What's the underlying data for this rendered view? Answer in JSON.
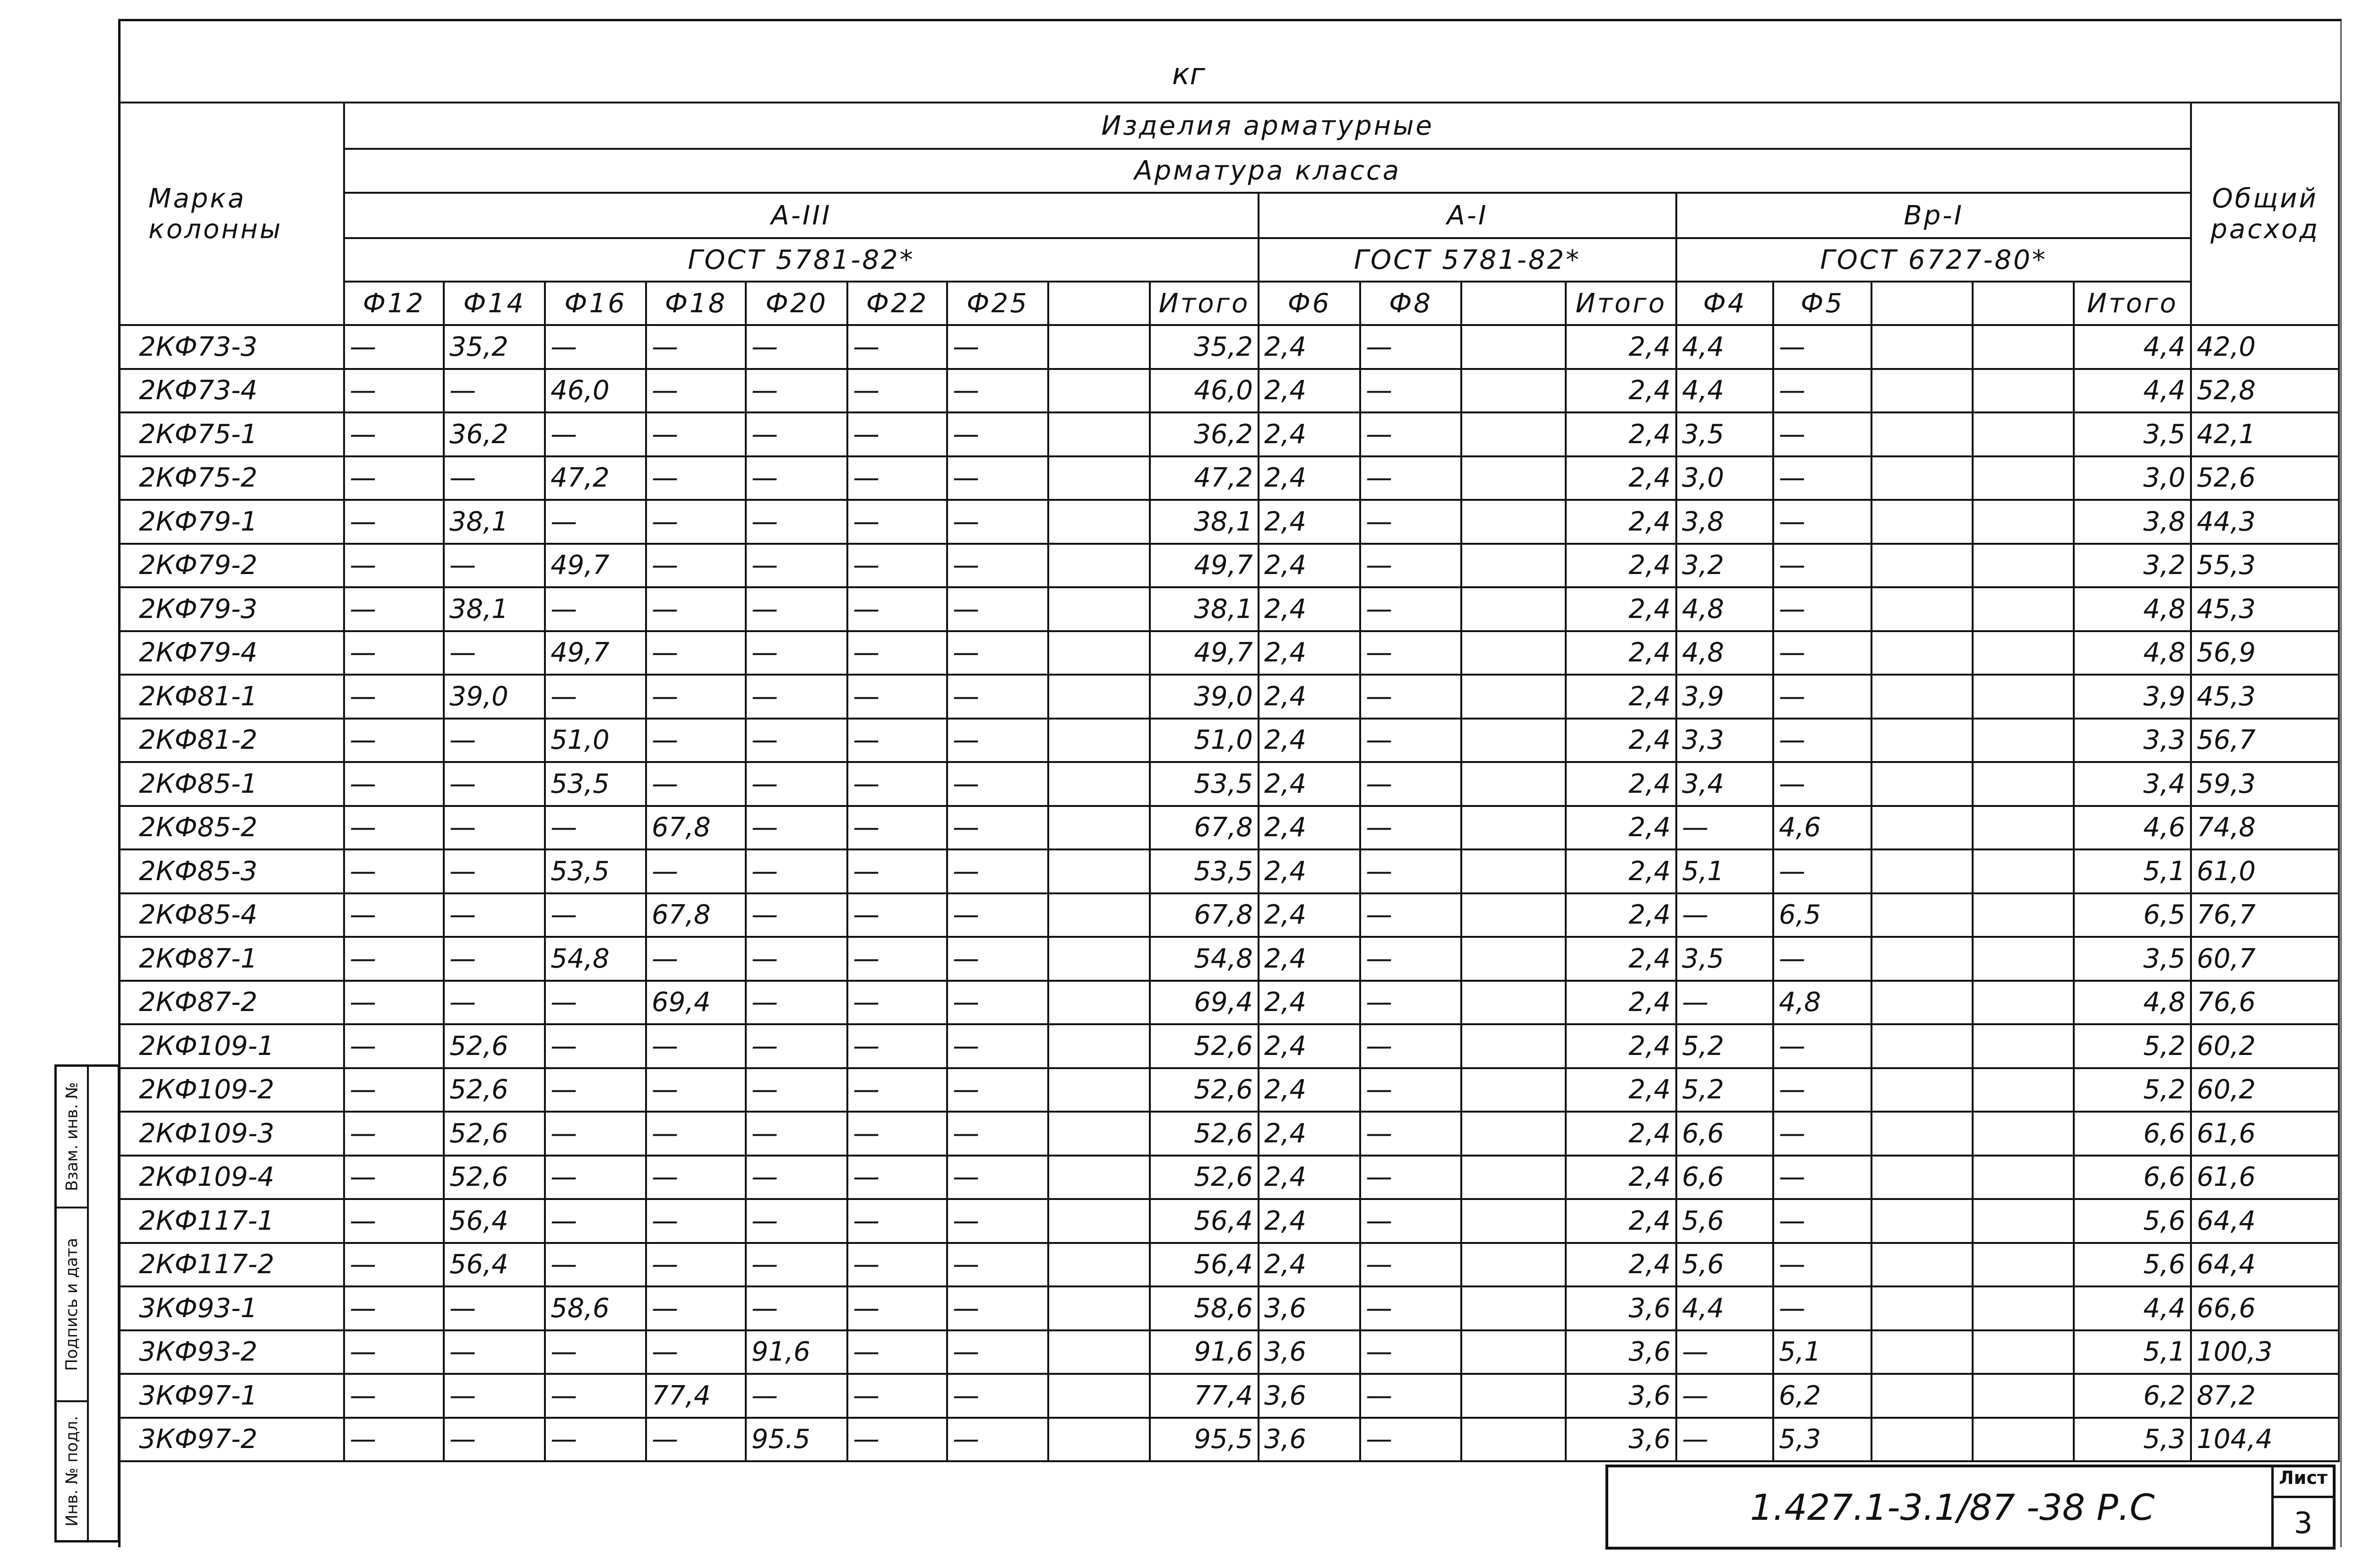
{
  "unit": "кг",
  "header": {
    "mark": "Марка колонны",
    "products": "Изделия арматурные",
    "rebar_class": "Арматура класса",
    "total_consumption": "Общий расход",
    "groups": [
      {
        "class": "А-III",
        "gost": "ГОСТ 5781-82*",
        "diameters": [
          "Ф12",
          "Ф14",
          "Ф16",
          "Ф18",
          "Ф20",
          "Ф22",
          "Ф25",
          ""
        ],
        "total": "Итого"
      },
      {
        "class": "А-I",
        "gost": "ГОСТ 5781-82*",
        "diameters": [
          "Ф6",
          "Ф8",
          ""
        ],
        "total": "Итого"
      },
      {
        "class": "Вр-I",
        "gost": "ГОСТ 6727-80*",
        "diameters": [
          "Ф4",
          "Ф5",
          "",
          ""
        ],
        "total": "Итого"
      }
    ]
  },
  "rows": [
    {
      "mark": "2КФ73-3",
      "a3": [
        "—",
        "35,2",
        "—",
        "—",
        "—",
        "—",
        "—",
        ""
      ],
      "a3_total": "35,2",
      "a1": [
        "2,4",
        "—",
        ""
      ],
      "a1_total": "2,4",
      "bp": [
        "4,4",
        "—",
        "",
        ""
      ],
      "bp_total": "4,4",
      "total": "42,0"
    },
    {
      "mark": "2КФ73-4",
      "a3": [
        "—",
        "—",
        "46,0",
        "—",
        "—",
        "—",
        "—",
        ""
      ],
      "a3_total": "46,0",
      "a1": [
        "2,4",
        "—",
        ""
      ],
      "a1_total": "2,4",
      "bp": [
        "4,4",
        "—",
        "",
        ""
      ],
      "bp_total": "4,4",
      "total": "52,8"
    },
    {
      "mark": "2КФ75-1",
      "a3": [
        "—",
        "36,2",
        "—",
        "—",
        "—",
        "—",
        "—",
        ""
      ],
      "a3_total": "36,2",
      "a1": [
        "2,4",
        "—",
        ""
      ],
      "a1_total": "2,4",
      "bp": [
        "3,5",
        "—",
        "",
        ""
      ],
      "bp_total": "3,5",
      "total": "42,1"
    },
    {
      "mark": "2КФ75-2",
      "a3": [
        "—",
        "—",
        "47,2",
        "—",
        "—",
        "—",
        "—",
        ""
      ],
      "a3_total": "47,2",
      "a1": [
        "2,4",
        "—",
        ""
      ],
      "a1_total": "2,4",
      "bp": [
        "3,0",
        "—",
        "",
        ""
      ],
      "bp_total": "3,0",
      "total": "52,6"
    },
    {
      "mark": "2КФ79-1",
      "a3": [
        "—",
        "38,1",
        "—",
        "—",
        "—",
        "—",
        "—",
        ""
      ],
      "a3_total": "38,1",
      "a1": [
        "2,4",
        "—",
        ""
      ],
      "a1_total": "2,4",
      "bp": [
        "3,8",
        "—",
        "",
        ""
      ],
      "bp_total": "3,8",
      "total": "44,3"
    },
    {
      "mark": "2КФ79-2",
      "a3": [
        "—",
        "—",
        "49,7",
        "—",
        "—",
        "—",
        "—",
        ""
      ],
      "a3_total": "49,7",
      "a1": [
        "2,4",
        "—",
        ""
      ],
      "a1_total": "2,4",
      "bp": [
        "3,2",
        "—",
        "",
        ""
      ],
      "bp_total": "3,2",
      "total": "55,3"
    },
    {
      "mark": "2КФ79-3",
      "a3": [
        "—",
        "38,1",
        "—",
        "—",
        "—",
        "—",
        "—",
        ""
      ],
      "a3_total": "38,1",
      "a1": [
        "2,4",
        "—",
        ""
      ],
      "a1_total": "2,4",
      "bp": [
        "4,8",
        "—",
        "",
        ""
      ],
      "bp_total": "4,8",
      "total": "45,3"
    },
    {
      "mark": "2КФ79-4",
      "a3": [
        "—",
        "—",
        "49,7",
        "—",
        "—",
        "—",
        "—",
        ""
      ],
      "a3_total": "49,7",
      "a1": [
        "2,4",
        "—",
        ""
      ],
      "a1_total": "2,4",
      "bp": [
        "4,8",
        "—",
        "",
        ""
      ],
      "bp_total": "4,8",
      "total": "56,9"
    },
    {
      "mark": "2КФ81-1",
      "a3": [
        "—",
        "39,0",
        "—",
        "—",
        "—",
        "—",
        "—",
        ""
      ],
      "a3_total": "39,0",
      "a1": [
        "2,4",
        "—",
        ""
      ],
      "a1_total": "2,4",
      "bp": [
        "3,9",
        "—",
        "",
        ""
      ],
      "bp_total": "3,9",
      "total": "45,3"
    },
    {
      "mark": "2КФ81-2",
      "a3": [
        "—",
        "—",
        "51,0",
        "—",
        "—",
        "—",
        "—",
        ""
      ],
      "a3_total": "51,0",
      "a1": [
        "2,4",
        "—",
        ""
      ],
      "a1_total": "2,4",
      "bp": [
        "3,3",
        "—",
        "",
        ""
      ],
      "bp_total": "3,3",
      "total": "56,7"
    },
    {
      "mark": "2КФ85-1",
      "a3": [
        "—",
        "—",
        "53,5",
        "—",
        "—",
        "—",
        "—",
        ""
      ],
      "a3_total": "53,5",
      "a1": [
        "2,4",
        "—",
        ""
      ],
      "a1_total": "2,4",
      "bp": [
        "3,4",
        "—",
        "",
        ""
      ],
      "bp_total": "3,4",
      "total": "59,3"
    },
    {
      "mark": "2КФ85-2",
      "a3": [
        "—",
        "—",
        "—",
        "67,8",
        "—",
        "—",
        "—",
        ""
      ],
      "a3_total": "67,8",
      "a1": [
        "2,4",
        "—",
        ""
      ],
      "a1_total": "2,4",
      "bp": [
        "—",
        "4,6",
        "",
        ""
      ],
      "bp_total": "4,6",
      "total": "74,8"
    },
    {
      "mark": "2КФ85-3",
      "a3": [
        "—",
        "—",
        "53,5",
        "—",
        "—",
        "—",
        "—",
        ""
      ],
      "a3_total": "53,5",
      "a1": [
        "2,4",
        "—",
        ""
      ],
      "a1_total": "2,4",
      "bp": [
        "5,1",
        "—",
        "",
        ""
      ],
      "bp_total": "5,1",
      "total": "61,0"
    },
    {
      "mark": "2КФ85-4",
      "a3": [
        "—",
        "—",
        "—",
        "67,8",
        "—",
        "—",
        "—",
        ""
      ],
      "a3_total": "67,8",
      "a1": [
        "2,4",
        "—",
        ""
      ],
      "a1_total": "2,4",
      "bp": [
        "—",
        "6,5",
        "",
        ""
      ],
      "bp_total": "6,5",
      "total": "76,7"
    },
    {
      "mark": "2КФ87-1",
      "a3": [
        "—",
        "—",
        "54,8",
        "—",
        "—",
        "—",
        "—",
        ""
      ],
      "a3_total": "54,8",
      "a1": [
        "2,4",
        "—",
        ""
      ],
      "a1_total": "2,4",
      "bp": [
        "3,5",
        "—",
        "",
        ""
      ],
      "bp_total": "3,5",
      "total": "60,7"
    },
    {
      "mark": "2КФ87-2",
      "a3": [
        "—",
        "—",
        "—",
        "69,4",
        "—",
        "—",
        "—",
        ""
      ],
      "a3_total": "69,4",
      "a1": [
        "2,4",
        "—",
        ""
      ],
      "a1_total": "2,4",
      "bp": [
        "—",
        "4,8",
        "",
        ""
      ],
      "bp_total": "4,8",
      "total": "76,6"
    },
    {
      "mark": "2КФ109-1",
      "a3": [
        "—",
        "52,6",
        "—",
        "—",
        "—",
        "—",
        "—",
        ""
      ],
      "a3_total": "52,6",
      "a1": [
        "2,4",
        "—",
        ""
      ],
      "a1_total": "2,4",
      "bp": [
        "5,2",
        "—",
        "",
        ""
      ],
      "bp_total": "5,2",
      "total": "60,2"
    },
    {
      "mark": "2КФ109-2",
      "a3": [
        "—",
        "52,6",
        "—",
        "—",
        "—",
        "—",
        "—",
        ""
      ],
      "a3_total": "52,6",
      "a1": [
        "2,4",
        "—",
        ""
      ],
      "a1_total": "2,4",
      "bp": [
        "5,2",
        "—",
        "",
        ""
      ],
      "bp_total": "5,2",
      "total": "60,2"
    },
    {
      "mark": "2КФ109-3",
      "a3": [
        "—",
        "52,6",
        "—",
        "—",
        "—",
        "—",
        "—",
        ""
      ],
      "a3_total": "52,6",
      "a1": [
        "2,4",
        "—",
        ""
      ],
      "a1_total": "2,4",
      "bp": [
        "6,6",
        "—",
        "",
        ""
      ],
      "bp_total": "6,6",
      "total": "61,6"
    },
    {
      "mark": "2КФ109-4",
      "a3": [
        "—",
        "52,6",
        "—",
        "—",
        "—",
        "—",
        "—",
        ""
      ],
      "a3_total": "52,6",
      "a1": [
        "2,4",
        "—",
        ""
      ],
      "a1_total": "2,4",
      "bp": [
        "6,6",
        "—",
        "",
        ""
      ],
      "bp_total": "6,6",
      "total": "61,6"
    },
    {
      "mark": "2КФ117-1",
      "a3": [
        "—",
        "56,4",
        "—",
        "—",
        "—",
        "—",
        "—",
        ""
      ],
      "a3_total": "56,4",
      "a1": [
        "2,4",
        "—",
        ""
      ],
      "a1_total": "2,4",
      "bp": [
        "5,6",
        "—",
        "",
        ""
      ],
      "bp_total": "5,6",
      "total": "64,4"
    },
    {
      "mark": "2КФ117-2",
      "a3": [
        "—",
        "56,4",
        "—",
        "—",
        "—",
        "—",
        "—",
        ""
      ],
      "a3_total": "56,4",
      "a1": [
        "2,4",
        "—",
        ""
      ],
      "a1_total": "2,4",
      "bp": [
        "5,6",
        "—",
        "",
        ""
      ],
      "bp_total": "5,6",
      "total": "64,4"
    },
    {
      "mark": "3КФ93-1",
      "a3": [
        "—",
        "—",
        "58,6",
        "—",
        "—",
        "—",
        "—",
        ""
      ],
      "a3_total": "58,6",
      "a1": [
        "3,6",
        "—",
        ""
      ],
      "a1_total": "3,6",
      "bp": [
        "4,4",
        "—",
        "",
        ""
      ],
      "bp_total": "4,4",
      "total": "66,6"
    },
    {
      "mark": "3КФ93-2",
      "a3": [
        "—",
        "—",
        "—",
        "—",
        "91,6",
        "—",
        "—",
        ""
      ],
      "a3_total": "91,6",
      "a1": [
        "3,6",
        "—",
        ""
      ],
      "a1_total": "3,6",
      "bp": [
        "—",
        "5,1",
        "",
        ""
      ],
      "bp_total": "5,1",
      "total": "100,3"
    },
    {
      "mark": "3КФ97-1",
      "a3": [
        "—",
        "—",
        "—",
        "77,4",
        "—",
        "—",
        "—",
        ""
      ],
      "a3_total": "77,4",
      "a1": [
        "3,6",
        "—",
        ""
      ],
      "a1_total": "3,6",
      "bp": [
        "—",
        "6,2",
        "",
        ""
      ],
      "bp_total": "6,2",
      "total": "87,2"
    },
    {
      "mark": "3КФ97-2",
      "a3": [
        "—",
        "—",
        "—",
        "—",
        "95.5",
        "—",
        "—",
        ""
      ],
      "a3_total": "95,5",
      "a1": [
        "3,6",
        "—",
        ""
      ],
      "a1_total": "3,6",
      "bp": [
        "—",
        "5,3",
        "",
        ""
      ],
      "bp_total": "5,3",
      "total": "104,4"
    }
  ],
  "side_stamp": [
    "Взам. инв. №",
    "Подпись и дата",
    "Инв. № подл."
  ],
  "title_block": {
    "code": "1.427.1-3.1/87 -38 Р.С",
    "sheet_label": "Лист",
    "sheet_number": "3"
  }
}
